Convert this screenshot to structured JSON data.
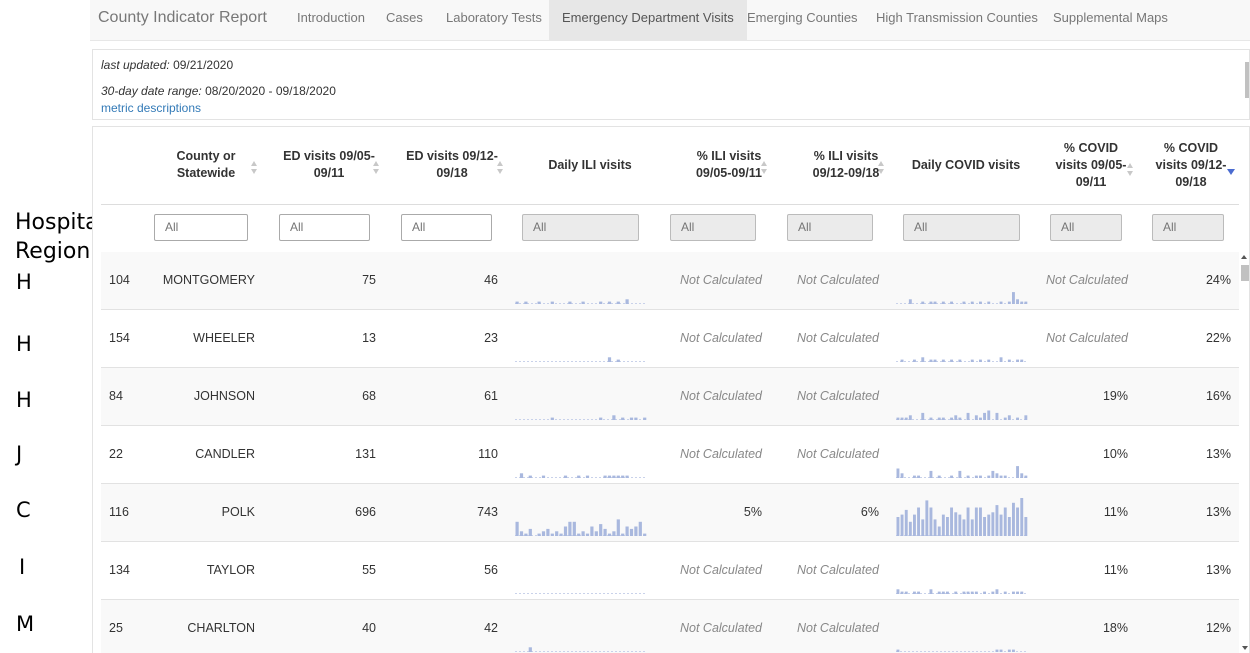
{
  "annotation": {
    "title_line1": "Hospital",
    "title_line2": "Region",
    "letters": [
      "H",
      "H",
      "H",
      "J",
      "C",
      "I",
      "M"
    ]
  },
  "nav": {
    "brand": "County Indicator Report",
    "tabs": [
      "Introduction",
      "Cases",
      "Laboratory Tests",
      "Emergency Department Visits",
      "Emerging Counties",
      "High Transmission Counties",
      "Supplemental Maps"
    ],
    "active": "Emergency Department Visits"
  },
  "info": {
    "updated_label": "last updated:",
    "updated_value": "09/21/2020",
    "range_label": "30-day date range:",
    "range_value": "08/20/2020 - 09/18/2020",
    "link": "metric descriptions"
  },
  "table": {
    "headers": {
      "county": [
        "County or",
        "Statewide"
      ],
      "ed1": [
        "ED visits 09/05-",
        "09/11"
      ],
      "ed2": [
        "ED visits 09/12-",
        "09/18"
      ],
      "ili_daily": [
        "Daily ILI visits"
      ],
      "ili1": [
        "% ILI visits",
        "09/05-09/11"
      ],
      "ili2": [
        "% ILI visits",
        "09/12-09/18"
      ],
      "covid_daily": [
        "Daily COVID visits"
      ],
      "covid1": [
        "% COVID",
        "visits 09/05-",
        "09/11"
      ],
      "covid2": [
        "% COVID",
        "visits 09/12-",
        "09/18"
      ]
    },
    "filter_placeholder": "All",
    "rows": [
      {
        "id": "104",
        "county": "MONTGOMERY",
        "ed1": "75",
        "ed2": "46",
        "ili1": "Not Calculated",
        "ili2": "Not Calculated",
        "covid1": "Not Calculated",
        "covid2": "24%",
        "ili_spark": [
          1,
          0,
          1,
          0,
          0,
          1,
          0,
          0,
          1,
          0,
          0,
          0,
          1,
          0,
          0,
          1,
          0,
          0,
          0,
          1,
          0,
          1,
          0,
          1,
          0,
          2,
          0,
          0,
          0,
          0
        ],
        "covid_spark": [
          0,
          0,
          0,
          2,
          0,
          0,
          1,
          0,
          1,
          1,
          0,
          1,
          0,
          1,
          0,
          0,
          1,
          0,
          1,
          0,
          1,
          0,
          1,
          0,
          0,
          1,
          0,
          1,
          5,
          2,
          1,
          1
        ]
      },
      {
        "id": "154",
        "county": "WHEELER",
        "ed1": "13",
        "ed2": "23",
        "ili1": "Not Calculated",
        "ili2": "Not Calculated",
        "covid1": "Not Calculated",
        "covid2": "22%",
        "ili_spark": [
          0,
          0,
          0,
          0,
          0,
          0,
          0,
          0,
          0,
          0,
          0,
          0,
          0,
          0,
          0,
          0,
          0,
          0,
          0,
          0,
          0,
          2,
          0,
          1,
          0,
          0,
          0,
          0,
          0,
          0
        ],
        "covid_spark": [
          0,
          1,
          0,
          0,
          1,
          0,
          2,
          0,
          1,
          1,
          0,
          1,
          0,
          1,
          0,
          1,
          0,
          0,
          1,
          0,
          1,
          0,
          1,
          0,
          0,
          2,
          0,
          1,
          0,
          1,
          1,
          0
        ]
      },
      {
        "id": "84",
        "county": "JOHNSON",
        "ed1": "68",
        "ed2": "61",
        "ili1": "Not Calculated",
        "ili2": "Not Calculated",
        "covid1": "19%",
        "covid2": "16%",
        "ili_spark": [
          0,
          0,
          0,
          0,
          0,
          0,
          0,
          0,
          1,
          0,
          0,
          0,
          0,
          0,
          0,
          0,
          0,
          0,
          0,
          1,
          0,
          0,
          2,
          0,
          1,
          0,
          1,
          1,
          0,
          1
        ],
        "covid_spark": [
          1,
          1,
          1,
          2,
          0,
          0,
          3,
          0,
          1,
          0,
          1,
          1,
          0,
          1,
          2,
          1,
          0,
          3,
          0,
          2,
          1,
          3,
          4,
          0,
          3,
          0,
          1,
          2,
          0,
          1,
          0,
          2
        ]
      },
      {
        "id": "22",
        "county": "CANDLER",
        "ed1": "131",
        "ed2": "110",
        "ili1": "Not Calculated",
        "ili2": "Not Calculated",
        "covid1": "10%",
        "covid2": "13%",
        "ili_spark": [
          0,
          2,
          0,
          1,
          0,
          0,
          1,
          0,
          0,
          0,
          0,
          1,
          0,
          0,
          1,
          0,
          1,
          0,
          0,
          0,
          1,
          1,
          1,
          1,
          1,
          1,
          0,
          0,
          0,
          0
        ],
        "covid_spark": [
          4,
          2,
          0,
          0,
          1,
          1,
          0,
          0,
          3,
          0,
          1,
          0,
          0,
          1,
          0,
          3,
          0,
          1,
          0,
          1,
          1,
          0,
          1,
          3,
          2,
          1,
          1,
          0,
          0,
          5,
          2,
          1
        ]
      },
      {
        "id": "116",
        "county": "POLK",
        "ed1": "696",
        "ed2": "743",
        "ili1": "5%",
        "ili2": "6%",
        "covid1": "11%",
        "covid2": "13%",
        "ili_spark": [
          6,
          2,
          1,
          3,
          0,
          1,
          2,
          3,
          1,
          2,
          1,
          4,
          6,
          6,
          1,
          2,
          1,
          4,
          2,
          5,
          3,
          1,
          2,
          7,
          1,
          4,
          3,
          4,
          6,
          1
        ],
        "covid_spark": [
          8,
          9,
          11,
          6,
          9,
          12,
          7,
          15,
          12,
          7,
          4,
          9,
          8,
          12,
          10,
          9,
          7,
          12,
          7,
          12,
          12,
          8,
          9,
          10,
          13,
          9,
          12,
          8,
          14,
          12,
          16,
          8
        ]
      },
      {
        "id": "134",
        "county": "TAYLOR",
        "ed1": "55",
        "ed2": "56",
        "ili1": "Not Calculated",
        "ili2": "Not Calculated",
        "covid1": "11%",
        "covid2": "13%",
        "ili_spark": [
          0,
          0,
          0,
          0,
          0,
          0,
          0,
          0,
          0,
          0,
          0,
          0,
          0,
          0,
          0,
          0,
          0,
          0,
          0,
          0,
          0,
          0,
          0,
          0,
          0,
          0,
          0,
          0,
          0,
          0
        ],
        "covid_spark": [
          2,
          1,
          1,
          0,
          1,
          1,
          0,
          0,
          2,
          0,
          1,
          1,
          1,
          0,
          1,
          0,
          1,
          1,
          1,
          1,
          0,
          1,
          0,
          1,
          2,
          0,
          1,
          0,
          1,
          1,
          1,
          0
        ]
      },
      {
        "id": "25",
        "county": "CHARLTON",
        "ed1": "40",
        "ed2": "42",
        "ili1": "Not Calculated",
        "ili2": "Not Calculated",
        "covid1": "18%",
        "covid2": "12%",
        "ili_spark": [
          0,
          0,
          0,
          2,
          0,
          0,
          0,
          0,
          0,
          0,
          0,
          0,
          0,
          0,
          0,
          0,
          0,
          0,
          0,
          0,
          0,
          0,
          0,
          0,
          0,
          0,
          0,
          0,
          0,
          0
        ],
        "covid_spark": [
          1,
          0,
          0,
          0,
          0,
          0,
          0,
          0,
          0,
          0,
          0,
          0,
          0,
          0,
          0,
          0,
          0,
          0,
          0,
          0,
          0,
          0,
          0,
          0,
          1,
          1,
          0,
          1,
          1,
          0,
          0,
          0
        ]
      }
    ]
  },
  "colors": {
    "spark_bar": "#a9b8de",
    "spark_base": "#c9d2ea",
    "link": "#337ab7"
  }
}
